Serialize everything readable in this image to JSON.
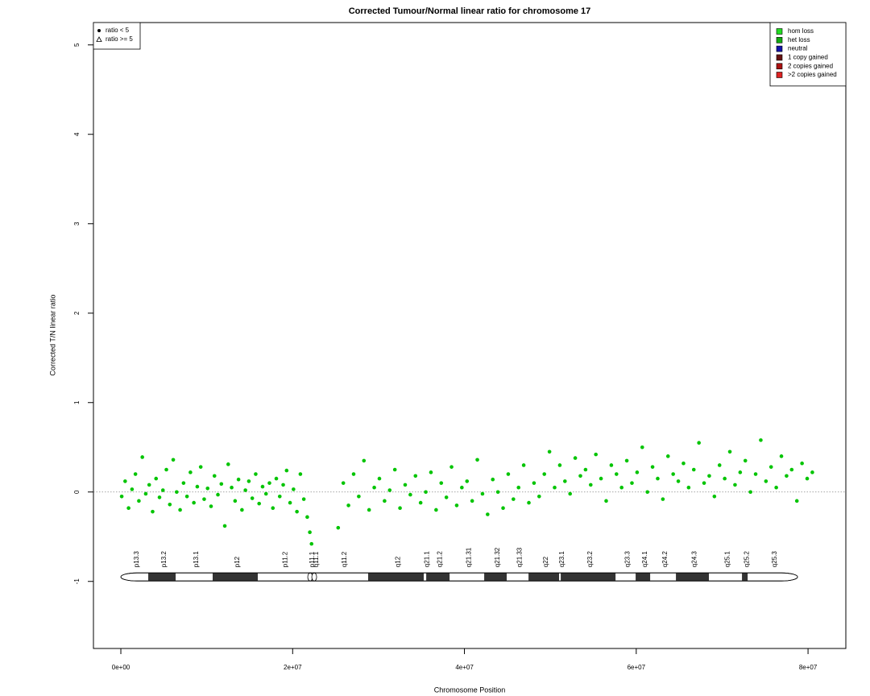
{
  "chart_data": {
    "type": "scatter",
    "title": "Corrected Tumour/Normal linear ratio for chromosome  17",
    "x_label": "Chromosome Position",
    "y_label": "Corrected T/N linear ratio",
    "xlim": [
      -3190000,
      84400000
    ],
    "ylim": [
      -1.75,
      5.25
    ],
    "xticks": [
      {
        "value": 0,
        "label": "0e+00"
      },
      {
        "value": 20000000,
        "label": "2e+07"
      },
      {
        "value": 40000000,
        "label": "4e+07"
      },
      {
        "value": 60000000,
        "label": "6e+07"
      },
      {
        "value": 80000000,
        "label": "8e+07"
      }
    ],
    "yticks": [
      -1,
      0,
      1,
      2,
      3,
      4,
      5
    ],
    "reference_line": 0,
    "marker_legend": [
      "ratio < 5",
      "ratio >= 5"
    ],
    "status_legend": [
      {
        "name": "hom loss",
        "color": "#22dd22"
      },
      {
        "name": "het loss",
        "color": "#11aa11"
      },
      {
        "name": "neutral",
        "color": "#1111aa"
      },
      {
        "name": "1 copy gained",
        "color": "#661111"
      },
      {
        "name": "2 copies gained",
        "color": "#aa1111"
      },
      {
        "name": ">2 copies gained",
        "color": "#dd2222"
      }
    ],
    "series": [
      {
        "color": "#00c400",
        "x": [
          100000,
          500000,
          900000,
          1300000,
          1700000,
          2100000,
          2500000,
          2900000,
          3300000,
          3700000,
          4100000,
          4500000,
          4900000,
          5300000,
          5700000,
          6100000,
          6500000,
          6900000,
          7300000,
          7700000,
          8100000,
          8500000,
          8900000,
          9300000,
          9700000,
          10100000,
          10500000,
          10900000,
          11300000,
          11700000,
          12100000,
          12500000,
          12900000,
          13300000,
          13700000,
          14100000,
          14500000,
          14900000,
          15300000,
          15700000,
          16100000,
          16500000,
          16900000,
          17300000,
          17700000,
          18100000,
          18500000,
          18900000,
          19300000,
          19700000,
          20100000,
          20500000,
          20900000,
          21300000,
          21700000,
          22000000,
          22200000,
          25300000,
          25900000,
          26500000,
          27100000,
          27700000,
          28300000,
          28900000,
          29500000,
          30100000,
          30700000,
          31300000,
          31900000,
          32500000,
          33100000,
          33700000,
          34300000,
          34900000,
          35500000,
          36100000,
          36700000,
          37300000,
          37900000,
          38500000,
          39100000,
          39700000,
          40300000,
          40900000,
          41500000,
          42100000,
          42700000,
          43300000,
          43900000,
          44500000,
          45100000,
          45700000,
          46300000,
          46900000,
          47500000,
          48100000,
          48700000,
          49300000,
          49900000,
          50500000,
          51100000,
          51700000,
          52300000,
          52900000,
          53500000,
          54100000,
          54700000,
          55300000,
          55900000,
          56500000,
          57100000,
          57700000,
          58300000,
          58900000,
          59500000,
          60100000,
          60700000,
          61300000,
          61900000,
          62500000,
          63100000,
          63700000,
          64300000,
          64900000,
          65500000,
          66100000,
          66700000,
          67300000,
          67900000,
          68500000,
          69100000,
          69700000,
          70300000,
          70900000,
          71500000,
          72100000,
          72700000,
          73300000,
          73900000,
          74500000,
          75100000,
          75700000,
          76300000,
          76900000,
          77500000,
          78100000,
          78700000,
          79300000,
          79900000,
          80500000
        ],
        "values": [
          -0.05,
          0.12,
          -0.18,
          0.03,
          0.2,
          -0.1,
          0.39,
          -0.02,
          0.08,
          -0.22,
          0.15,
          -0.06,
          0.02,
          0.25,
          -0.14,
          0.36,
          0.0,
          -0.2,
          0.1,
          -0.05,
          0.22,
          -0.12,
          0.06,
          0.28,
          -0.08,
          0.04,
          -0.16,
          0.18,
          -0.03,
          0.09,
          -0.38,
          0.31,
          0.05,
          -0.1,
          0.14,
          -0.2,
          0.02,
          0.12,
          -0.07,
          0.2,
          -0.13,
          0.06,
          -0.02,
          0.1,
          -0.18,
          0.15,
          -0.05,
          0.08,
          0.24,
          -0.12,
          0.03,
          -0.22,
          0.2,
          -0.08,
          -0.28,
          -0.45,
          -0.58,
          -0.4,
          0.1,
          -0.15,
          0.2,
          -0.05,
          0.35,
          -0.2,
          0.05,
          0.15,
          -0.1,
          0.02,
          0.25,
          -0.18,
          0.08,
          -0.03,
          0.18,
          -0.12,
          0.0,
          0.22,
          -0.2,
          0.1,
          -0.06,
          0.28,
          -0.15,
          0.05,
          0.12,
          -0.1,
          0.36,
          -0.02,
          -0.25,
          0.14,
          0.0,
          -0.18,
          0.2,
          -0.08,
          0.05,
          0.3,
          -0.12,
          0.1,
          -0.05,
          0.2,
          0.45,
          0.05,
          0.3,
          0.12,
          -0.02,
          0.38,
          0.18,
          0.25,
          0.08,
          0.42,
          0.15,
          -0.1,
          0.3,
          0.2,
          0.05,
          0.35,
          0.1,
          0.22,
          0.5,
          0.0,
          0.28,
          0.15,
          -0.08,
          0.4,
          0.2,
          0.12,
          0.32,
          0.05,
          0.25,
          0.55,
          0.1,
          0.18,
          -0.05,
          0.3,
          0.15,
          0.45,
          0.08,
          0.22,
          0.35,
          0.0,
          0.2,
          0.58,
          0.12,
          0.28,
          0.05,
          0.4,
          0.18,
          0.25,
          -0.1,
          0.32,
          0.15,
          0.22
        ]
      }
    ],
    "ideogram": {
      "y": -0.95,
      "bands": [
        {
          "name": "p13.3",
          "start": 0,
          "end": 3190000,
          "stain": "gneg"
        },
        {
          "name": "p13.2",
          "start": 3190000,
          "end": 6380000,
          "stain": "gpos"
        },
        {
          "name": "p13.1",
          "start": 6380000,
          "end": 10690000,
          "stain": "gneg"
        },
        {
          "name": "p12",
          "start": 10690000,
          "end": 15940000,
          "stain": "gpos"
        },
        {
          "name": "p11.2",
          "start": 15940000,
          "end": 21850000,
          "stain": "gneg"
        },
        {
          "name": "p11.1",
          "start": 21850000,
          "end": 22230000,
          "stain": "acen"
        },
        {
          "name": "q11.1",
          "start": 22230000,
          "end": 22790000,
          "stain": "acen"
        },
        {
          "name": "q11.2",
          "start": 22790000,
          "end": 28790000,
          "stain": "gneg"
        },
        {
          "name": "q12",
          "start": 28790000,
          "end": 35260000,
          "stain": "gpos"
        },
        {
          "name": "q21.1",
          "start": 35260000,
          "end": 35550000,
          "stain": "gneg"
        },
        {
          "name": "q21.2",
          "start": 35550000,
          "end": 38270000,
          "stain": "gpos"
        },
        {
          "name": "q21.31",
          "start": 38270000,
          "end": 42300000,
          "stain": "gneg"
        },
        {
          "name": "q21.32",
          "start": 42300000,
          "end": 44920000,
          "stain": "gpos"
        },
        {
          "name": "q21.33",
          "start": 44920000,
          "end": 47460000,
          "stain": "gneg"
        },
        {
          "name": "q22",
          "start": 47460000,
          "end": 51020000,
          "stain": "gpos"
        },
        {
          "name": "q23.1",
          "start": 51020000,
          "end": 51210000,
          "stain": "gneg"
        },
        {
          "name": "q23.2",
          "start": 51210000,
          "end": 57590000,
          "stain": "gpos"
        },
        {
          "name": "q23.3",
          "start": 57590000,
          "end": 59930000,
          "stain": "gneg"
        },
        {
          "name": "q24.1",
          "start": 59930000,
          "end": 61620000,
          "stain": "gpos"
        },
        {
          "name": "q24.2",
          "start": 61620000,
          "end": 64620000,
          "stain": "gneg"
        },
        {
          "name": "q24.3",
          "start": 64620000,
          "end": 68460000,
          "stain": "gpos"
        },
        {
          "name": "q25.1",
          "start": 68460000,
          "end": 72310000,
          "stain": "gneg"
        },
        {
          "name": "q25.2",
          "start": 72310000,
          "end": 72970000,
          "stain": "gpos"
        },
        {
          "name": "q25.3",
          "start": 72970000,
          "end": 78780000,
          "stain": "gneg"
        }
      ]
    }
  }
}
